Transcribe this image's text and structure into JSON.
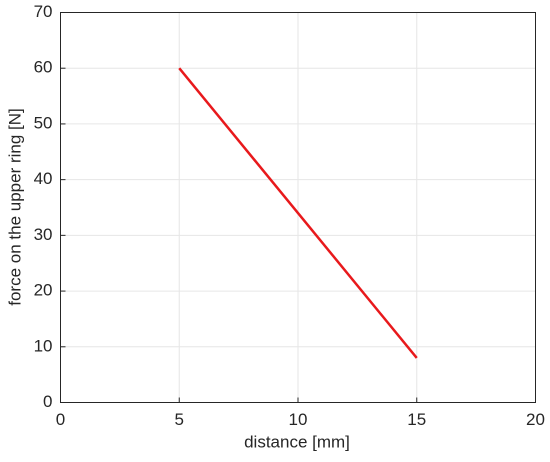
{
  "chart_data": {
    "type": "line",
    "x": [
      5,
      15
    ],
    "values": [
      60,
      8
    ],
    "color": "#e8191c",
    "xlabel": "distance [mm]",
    "ylabel": "force on the upper ring [N]",
    "xlim": [
      0,
      20
    ],
    "xticks": [
      0,
      5,
      10,
      15,
      20
    ],
    "ylim": [
      0,
      70
    ],
    "yticks": [
      0,
      10,
      20,
      30,
      40,
      50,
      60,
      70
    ],
    "grid": true
  }
}
